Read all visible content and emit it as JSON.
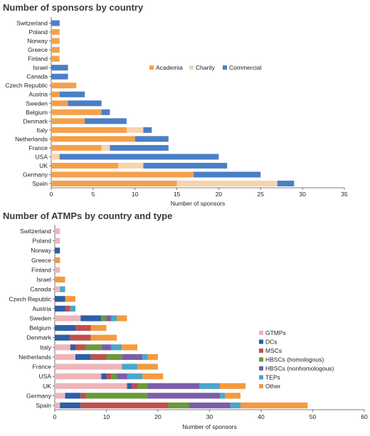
{
  "chart_data": [
    {
      "type": "bar",
      "orientation": "horizontal",
      "stacked": true,
      "title": "Number of sponsors by country",
      "xlabel": "Number of sponsors",
      "ylabel": "",
      "xlim": [
        0,
        35
      ],
      "xticks": [
        0,
        5,
        10,
        15,
        20,
        25,
        30,
        35
      ],
      "grid": false,
      "legend_position": "top-right, inline",
      "categories": [
        "Switzerland",
        "Poland",
        "Norway",
        "Greece",
        "Finland",
        "Israel",
        "Canada",
        "Czech Republic",
        "Austria",
        "Sweden",
        "Belgium",
        "Denmark",
        "Italy",
        "Netherlands",
        "France",
        "USA",
        "UK",
        "Germany",
        "Spain"
      ],
      "series": [
        {
          "name": "Academia",
          "color": "#f5a04a",
          "values": [
            0,
            1,
            1,
            1,
            1,
            0,
            0,
            3,
            1,
            2,
            6,
            4,
            9,
            10,
            6,
            0,
            8,
            17,
            15
          ]
        },
        {
          "name": "Charity",
          "color": "#f8d3ac",
          "values": [
            0,
            0,
            0,
            0,
            0,
            0,
            0,
            0,
            0,
            0,
            0,
            0,
            2,
            0,
            1,
            1,
            3,
            0,
            12
          ]
        },
        {
          "name": "Commercial",
          "color": "#4a7fc6",
          "values": [
            1,
            0,
            0,
            0,
            0,
            2,
            2,
            0,
            3,
            4,
            1,
            5,
            1,
            4,
            7,
            19,
            10,
            8,
            2
          ]
        }
      ]
    },
    {
      "type": "bar",
      "orientation": "horizontal",
      "stacked": true,
      "title": "Number of ATMPs by country and type",
      "xlabel": "Number of sponsors",
      "ylabel": "",
      "xlim": [
        0,
        60
      ],
      "xticks": [
        0,
        10,
        20,
        30,
        40,
        50,
        60
      ],
      "grid": false,
      "legend_position": "right, vertical",
      "categories": [
        "Switzerland",
        "Poland",
        "Norway",
        "Greece",
        "Finland",
        "Israel",
        "Canada",
        "Czech Republic",
        "Austria",
        "Sweden",
        "Belgium",
        "Denmark",
        "Italy",
        "Netherlands",
        "France",
        "USA",
        "UK",
        "Germany",
        "Spain"
      ],
      "series": [
        {
          "name": "GTMPs",
          "color": "#f0b4bb",
          "values": [
            1,
            1,
            0,
            0,
            1,
            0,
            1,
            0,
            0,
            5,
            0,
            0,
            3,
            4,
            13,
            9,
            14,
            2,
            1
          ]
        },
        {
          "name": "DCs",
          "color": "#2e5ea8",
          "values": [
            0,
            0,
            1,
            0,
            0,
            0,
            0,
            2,
            2,
            4,
            4,
            3,
            1,
            3,
            0,
            1,
            1,
            3,
            4
          ]
        },
        {
          "name": "MSCs",
          "color": "#c0504d",
          "values": [
            0,
            0,
            0,
            0,
            0,
            0,
            0,
            0,
            1,
            0,
            3,
            4,
            2,
            3,
            0,
            1,
            1,
            1,
            17
          ]
        },
        {
          "name": "HBSCs (homologous)",
          "color": "#6a9a3a",
          "values": [
            0,
            0,
            0,
            0,
            0,
            0,
            0,
            0,
            0,
            1,
            0,
            0,
            3,
            3,
            0,
            1,
            2,
            12,
            4
          ]
        },
        {
          "name": "HBSCs (nonhomologous)",
          "color": "#7b5ea7",
          "values": [
            0,
            0,
            0,
            0,
            0,
            0,
            0,
            0,
            0,
            1,
            0,
            0,
            2,
            4,
            0,
            2,
            10,
            14,
            8
          ]
        },
        {
          "name": "TEPs",
          "color": "#4aa7c9",
          "values": [
            0,
            0,
            0,
            0,
            0,
            0,
            1,
            0,
            1,
            1,
            0,
            0,
            2,
            1,
            3,
            3,
            4,
            1,
            2
          ]
        },
        {
          "name": "Other",
          "color": "#f59a3e",
          "values": [
            0,
            0,
            0,
            1,
            0,
            2,
            0,
            2,
            0,
            2,
            3,
            5,
            3,
            2,
            4,
            4,
            5,
            3,
            13
          ]
        }
      ]
    }
  ]
}
